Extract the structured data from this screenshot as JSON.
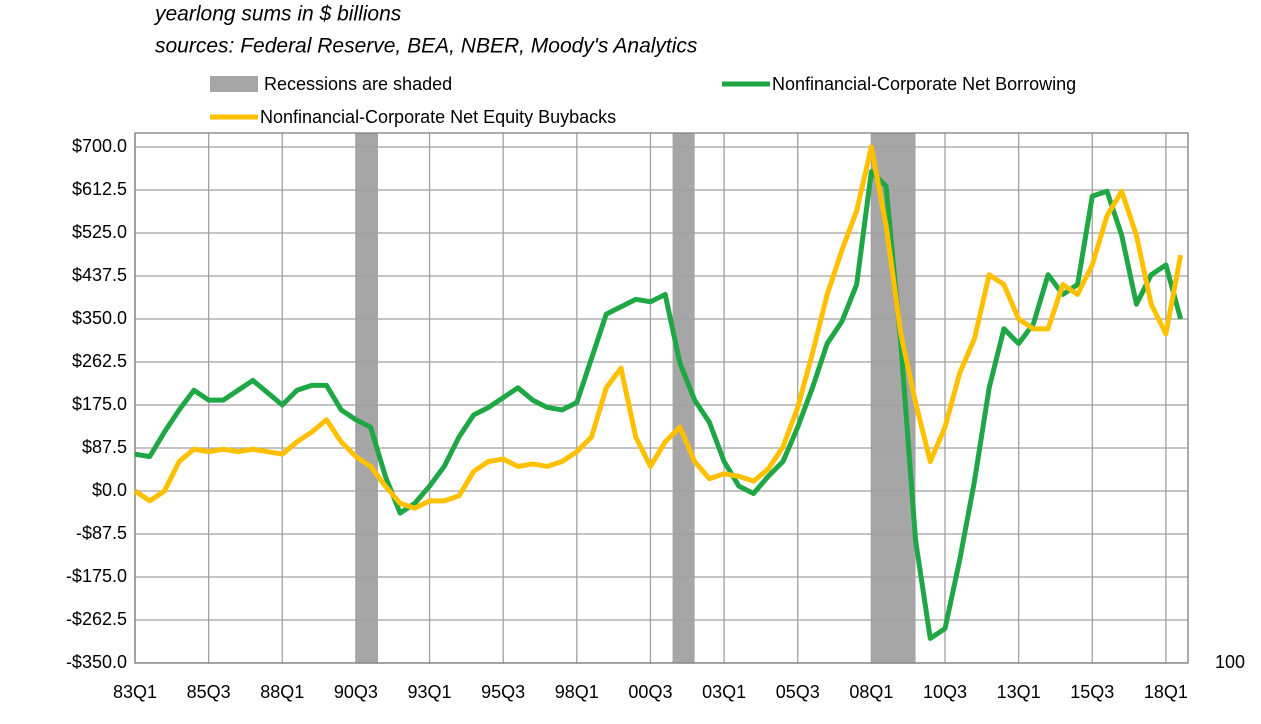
{
  "chart_data": {
    "type": "line",
    "subtitle_lines": [
      "yearlong sums in $ billions",
      "sources: Federal Reserve, BEA, NBER, Moody's Analytics"
    ],
    "recession_label": "Recessions are shaded",
    "recession_color": "#a6a6a6",
    "recessions": [
      {
        "start": 1990.5,
        "end": 1991.25
      },
      {
        "start": 2001.25,
        "end": 2002.0
      },
      {
        "start": 2008.0,
        "end": 2009.5
      }
    ],
    "annotation": "100",
    "x": [
      1983,
      1983.5,
      1984,
      1984.5,
      1985,
      1985.5,
      1986,
      1986.5,
      1987,
      1987.5,
      1988,
      1988.5,
      1989,
      1989.5,
      1990,
      1990.5,
      1991,
      1991.5,
      1992,
      1992.5,
      1993,
      1993.5,
      1994,
      1994.5,
      1995,
      1995.5,
      1996,
      1996.5,
      1997,
      1997.5,
      1998,
      1998.5,
      1999,
      1999.5,
      2000,
      2000.5,
      2001,
      2001.5,
      2002,
      2002.5,
      2003,
      2003.5,
      2004,
      2004.5,
      2005,
      2005.5,
      2006,
      2006.5,
      2007,
      2007.5,
      2008,
      2008.5,
      2009,
      2009.5,
      2010,
      2010.5,
      2011,
      2011.5,
      2012,
      2012.5,
      2013,
      2013.5,
      2014,
      2014.5,
      2015,
      2015.5,
      2016,
      2016.5,
      2017,
      2017.5,
      2018,
      2018.5
    ],
    "series": [
      {
        "name": "Nonfinancial-Corporate Net Borrowing",
        "color": "#1fa645",
        "values": [
          75,
          70,
          120,
          165,
          205,
          185,
          185,
          205,
          225,
          200,
          175,
          205,
          215,
          215,
          165,
          145,
          130,
          30,
          -45,
          -25,
          10,
          50,
          110,
          155,
          170,
          190,
          210,
          185,
          170,
          165,
          180,
          270,
          360,
          375,
          390,
          385,
          400,
          260,
          185,
          140,
          60,
          10,
          -5,
          30,
          60,
          130,
          210,
          300,
          345,
          420,
          650,
          620,
          300,
          -100,
          -300,
          -280,
          -140,
          20,
          210,
          330,
          300,
          340,
          440,
          400,
          420,
          600,
          610,
          520,
          380,
          440,
          460,
          350
        ]
      },
      {
        "name": "Nonfinancial-Corporate Net Equity Buybacks",
        "color": "#ffc000",
        "values": [
          0,
          -20,
          0,
          60,
          85,
          80,
          85,
          80,
          85,
          80,
          75,
          100,
          120,
          145,
          100,
          70,
          50,
          10,
          -25,
          -35,
          -20,
          -20,
          -10,
          40,
          60,
          65,
          50,
          55,
          50,
          60,
          80,
          110,
          210,
          250,
          110,
          50,
          100,
          130,
          60,
          25,
          35,
          30,
          20,
          45,
          90,
          170,
          280,
          400,
          490,
          570,
          700,
          540,
          320,
          180,
          60,
          130,
          240,
          310,
          440,
          420,
          350,
          330,
          330,
          420,
          400,
          460,
          560,
          610,
          520,
          380,
          320,
          480
        ]
      }
    ],
    "xlim": [
      1983,
      2018.75
    ],
    "xticks": [
      {
        "value": 1983,
        "label": "83Q1"
      },
      {
        "value": 1985.5,
        "label": "85Q3"
      },
      {
        "value": 1988,
        "label": "88Q1"
      },
      {
        "value": 1990.5,
        "label": "90Q3"
      },
      {
        "value": 1993,
        "label": "93Q1"
      },
      {
        "value": 1995.5,
        "label": "95Q3"
      },
      {
        "value": 1998,
        "label": "98Q1"
      },
      {
        "value": 2000.5,
        "label": "00Q3"
      },
      {
        "value": 2003,
        "label": "03Q1"
      },
      {
        "value": 2005.5,
        "label": "05Q3"
      },
      {
        "value": 2008,
        "label": "08Q1"
      },
      {
        "value": 2010.5,
        "label": "10Q3"
      },
      {
        "value": 2013,
        "label": "13Q1"
      },
      {
        "value": 2015.5,
        "label": "15Q3"
      },
      {
        "value": 2018,
        "label": "18Q1"
      }
    ],
    "ylim": [
      -350,
      700
    ],
    "yticks": [
      {
        "value": -350,
        "label": "-$350.0"
      },
      {
        "value": -262.5,
        "label": "-$262.5"
      },
      {
        "value": -175,
        "label": "-$175.0"
      },
      {
        "value": -87.5,
        "label": "-$87.5"
      },
      {
        "value": 0,
        "label": "$0.0"
      },
      {
        "value": 87.5,
        "label": "$87.5"
      },
      {
        "value": 175,
        "label": "$175.0"
      },
      {
        "value": 262.5,
        "label": "$262.5"
      },
      {
        "value": 350,
        "label": "$350.0"
      },
      {
        "value": 437.5,
        "label": "$437.5"
      },
      {
        "value": 525,
        "label": "$525.0"
      },
      {
        "value": 612.5,
        "label": "$612.5"
      },
      {
        "value": 700,
        "label": "$700.0"
      }
    ],
    "grid": true
  }
}
